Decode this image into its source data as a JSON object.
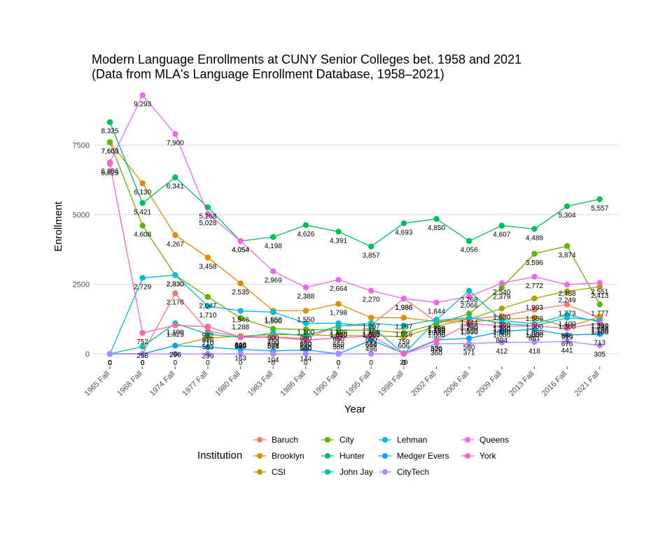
{
  "chart_data": {
    "type": "line",
    "title": "Modern Language Enrollments at CUNY Senior Colleges bet. 1958 and 2021",
    "subtitle": "(Data from MLA's Language Enrollment Database, 1958–2021)",
    "xlabel": "Year",
    "ylabel": "Enrollment",
    "ylim": [
      -400,
      9600
    ],
    "yticks": [
      0,
      2500,
      5000,
      7500
    ],
    "ytick_labels": [
      "0",
      "2500",
      "5000",
      "7500"
    ],
    "grid": true,
    "legend_title": "Institution",
    "legend_position": "bottom",
    "categories": [
      "1965 Fall",
      "1968 Fall",
      "1974 Fall",
      "1977 Fall",
      "1980 Fall",
      "1983 Fall",
      "1986 Fall",
      "1990 Fall",
      "1995 Fall",
      "1998 Fall",
      "2002 Fall",
      "2006 Fall",
      "2009 Fall",
      "2013 Fall",
      "2016 Fall",
      "2021 Fall"
    ],
    "series": [
      {
        "name": "Baruch",
        "color": "#F8766D",
        "values": [
          0,
          0,
          2176,
          816,
          624,
          604,
          550,
          1010,
          1025,
          1986,
          1160,
          1250,
          1360,
          1589,
          1773,
          1285
        ],
        "labels": [
          "0",
          "0",
          "2,176",
          "816",
          "624",
          "604",
          "550",
          "1,010",
          "1,025",
          "1,986",
          "1,160",
          "1,250",
          "1,360",
          "1,589",
          "1,773",
          "1,285"
        ]
      },
      {
        "name": "Brooklyn",
        "color": "#DB8E00",
        "values": [
          7603,
          6130,
          4267,
          3458,
          2535,
          1550,
          1550,
          1798,
          1297,
          1297,
          1160,
          1150,
          1240,
          1300,
          966,
          1330
        ],
        "labels": [
          "7,603",
          "6,130",
          "4,267",
          "3,458",
          "2,535",
          "1,550",
          "1,550",
          "1,798",
          "1,297",
          "1,297",
          "1,160",
          "1,150",
          "1,240",
          "1,300",
          "966",
          "1,330"
        ]
      },
      {
        "name": "CSI",
        "color": "#AEA200",
        "values": [
          0,
          0,
          296,
          563,
          640,
          690,
          690,
          650,
          660,
          606,
          1000,
          1250,
          1630,
          1993,
          2249,
          2413
        ],
        "labels": [
          "0",
          "0",
          "296",
          "563",
          "640",
          "690",
          "690",
          "650",
          "660",
          "606",
          "1,000",
          "1,250",
          "1,630",
          "1,993",
          "2,249",
          "2,413"
        ]
      },
      {
        "name": "City",
        "color": "#64B200",
        "values": [
          7603,
          4608,
          2830,
          2047,
          1288,
          900,
          880,
          850,
          850,
          759,
          1080,
          1444,
          2379,
          3596,
          3874,
          1777
        ],
        "labels": [
          "7,603",
          "4,608",
          "2,830",
          "2,047",
          "1,288",
          "900",
          "880",
          "850",
          "850",
          "759",
          "1,080",
          "1,444",
          "2,379",
          "3,596",
          "3,874",
          "1,777"
        ]
      },
      {
        "name": "Hunter",
        "color": "#00BD5C",
        "values": [
          8325,
          5421,
          6341,
          5268,
          4054,
          4198,
          4626,
          4391,
          3857,
          4693,
          4850,
          4056,
          4607,
          4489,
          5304,
          5557
        ],
        "labels": [
          "8,325",
          "5,421",
          "6,341",
          "5,268",
          "4,054",
          "4,198",
          "4,626",
          "4,391",
          "3,857",
          "4,693",
          "4,850",
          "4,056",
          "4,607",
          "4,489",
          "5,304",
          "5,557"
        ]
      },
      {
        "name": "John Jay",
        "color": "#00C1A7",
        "values": [
          0,
          258,
          1100,
          710,
          590,
          750,
          650,
          1000,
          1100,
          1016,
          1229,
          2268,
          1200,
          1080,
          1400,
          1150
        ],
        "labels": [
          "0",
          "258",
          "1,100",
          "710",
          "590",
          "750",
          "650",
          "1,000",
          "1,100",
          "1,016",
          "1,229",
          "2,268",
          "1,200",
          "1,080",
          "1,400",
          "1,150"
        ]
      },
      {
        "name": "Lehman",
        "color": "#00BADE",
        "values": [
          0,
          2729,
          2830,
          1710,
          1546,
          1500,
          1100,
          1100,
          1000,
          0,
          1200,
          1300,
          1100,
          1000,
          1300,
          1200
        ],
        "labels": [
          "0",
          "2,729",
          "2,830",
          "1,710",
          "1,546",
          "1,500",
          "1,100",
          "1,100",
          "1,000",
          "0",
          "1,200",
          "1,300",
          "1,100",
          "1,000",
          "1,300",
          "1,200"
        ]
      },
      {
        "name": "Medger Evers",
        "color": "#00A6FF",
        "values": [
          0,
          0,
          296,
          239,
          163,
          104,
          144,
          0,
          496,
          20,
          500,
          560,
          804,
          881,
          676,
          713
        ],
        "labels": [
          "0",
          "0",
          "296",
          "239",
          "163",
          "104",
          "144",
          "0",
          "496",
          "20",
          "500",
          "560",
          "804",
          "881",
          "676",
          "713"
        ]
      },
      {
        "name": "CityTech",
        "color": "#B385FF",
        "values": [
          0,
          0,
          0,
          0,
          0,
          0,
          0,
          0,
          0,
          0,
          360,
          371,
          412,
          418,
          441,
          305
        ],
        "labels": [
          "0",
          "0",
          "0",
          "0",
          "0",
          "0",
          "0",
          "0",
          "0",
          "0",
          "360",
          "371",
          "412",
          "418",
          "441",
          "305"
        ]
      },
      {
        "name": "Queens",
        "color": "#EF67EB",
        "values": [
          6886,
          9293,
          7900,
          5028,
          4054,
          2969,
          2388,
          2664,
          2270,
          1986,
          1844,
          2066,
          2540,
          2772,
          2488,
          2551
        ],
        "labels": [
          "6,886",
          "9,293",
          "7,900",
          "5,028",
          "4,054",
          "2,969",
          "2,388",
          "2,664",
          "2,270",
          "1,986",
          "1,844",
          "2,066",
          "2,540",
          "2,772",
          "2,488",
          "2,551"
        ]
      },
      {
        "name": "York",
        "color": "#FF63B6",
        "values": [
          6825,
          752,
          1025,
          982,
          600,
          593,
          500,
          566,
          644,
          0,
          476,
          1090,
          1000,
          1000,
          919,
          1100
        ],
        "labels": [
          "6,825",
          "752",
          "1,025",
          "982",
          "600",
          "593",
          "500",
          "566",
          "644",
          "0",
          "476",
          "1,090",
          "1,000",
          "1,000",
          "919",
          "1,100"
        ]
      }
    ]
  }
}
